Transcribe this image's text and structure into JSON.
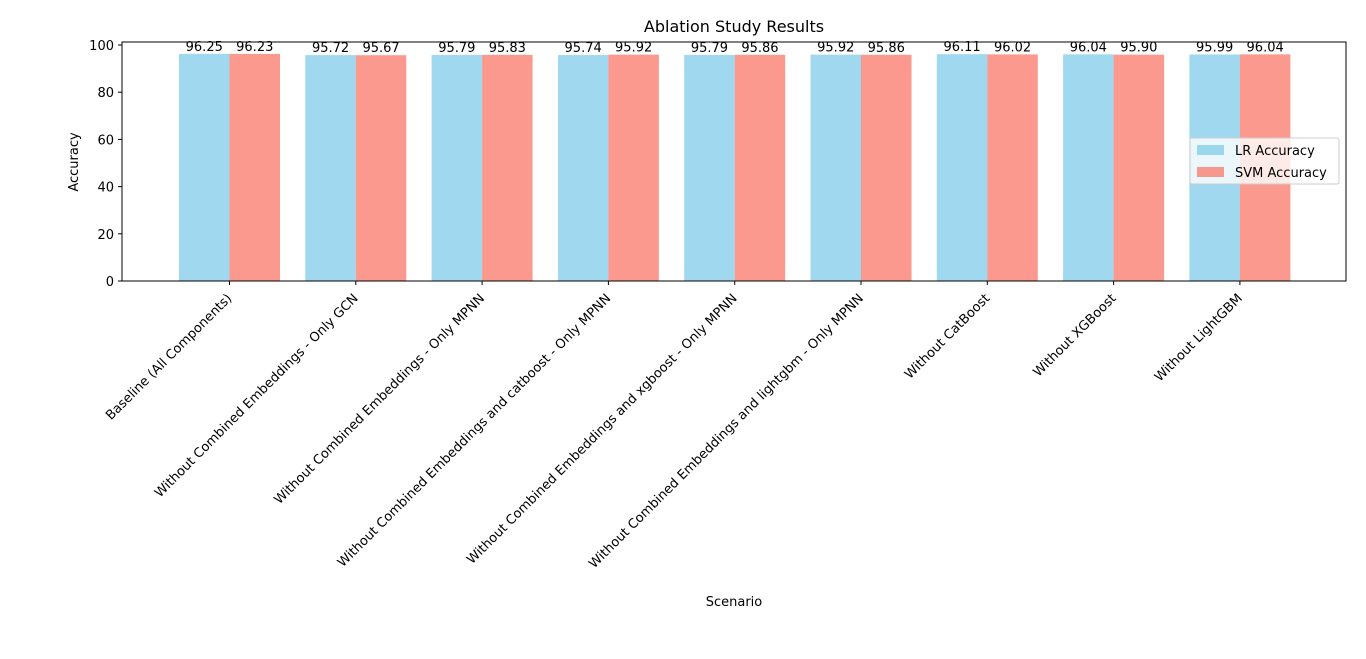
{
  "chart_data": {
    "type": "bar",
    "title": "Ablation Study Results",
    "xlabel": "Scenario",
    "ylabel": "Accuracy",
    "ylim": [
      0,
      100
    ],
    "yticks": [
      0,
      20,
      40,
      60,
      80,
      100
    ],
    "grid": false,
    "legend_position": "center-right",
    "categories": [
      "Baseline (All Components)",
      "Without Combined Embeddings - Only GCN",
      "Without Combined Embeddings - Only MPNN",
      "Without Combined Embeddings and catboost - Only MPNN",
      "Without Combined Embeddings and xgboost - Only MPNN",
      "Without Combined Embeddings and lightgbm - Only MPNN",
      "Without CatBoost",
      "Without XGBoost",
      "Without LightGBM"
    ],
    "series": [
      {
        "name": "LR Accuracy",
        "color": "#87CEEB",
        "values": [
          96.25,
          95.72,
          95.79,
          95.74,
          95.79,
          95.92,
          96.11,
          96.04,
          95.99
        ],
        "labels": [
          "96.25",
          "95.72",
          "95.79",
          "95.74",
          "95.79",
          "95.92",
          "96.11",
          "96.04",
          "95.99"
        ]
      },
      {
        "name": "SVM Accuracy",
        "color": "#FA8072",
        "values": [
          96.23,
          95.67,
          95.83,
          95.92,
          95.86,
          95.86,
          96.02,
          95.9,
          96.04
        ],
        "labels": [
          "96.23",
          "95.67",
          "95.83",
          "95.92",
          "95.86",
          "95.86",
          "96.02",
          "95.90",
          "96.04"
        ]
      }
    ]
  }
}
